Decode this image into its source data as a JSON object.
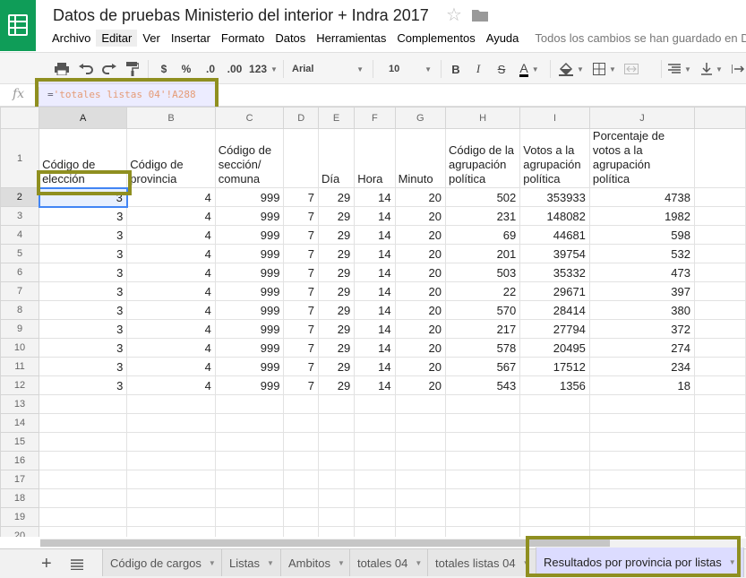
{
  "app": {
    "title": "Datos de pruebas Ministerio del interior + Indra 2017",
    "logo_icon": "sheets-logo-icon",
    "brand_color": "#0f9d58",
    "highlight_color": "#8f8f20"
  },
  "menu": {
    "items": [
      "Archivo",
      "Editar",
      "Ver",
      "Insertar",
      "Formato",
      "Datos",
      "Herramientas",
      "Complementos",
      "Ayuda"
    ],
    "active": "Editar",
    "save_status": "Todos los cambios se han guardado en Drive"
  },
  "toolbar": {
    "currency": "$",
    "percent": "%",
    "decrease_decimals": ".0",
    "increase_decimals": ".00",
    "more_formats": "123",
    "font_family": "Arial",
    "font_size": "10",
    "bold": "B",
    "italic": "I",
    "strikethrough": "S",
    "text_color": "A",
    "icons": [
      "print-icon",
      "undo-icon",
      "redo-icon",
      "paint-format-icon",
      "fill-color-icon",
      "borders-icon",
      "merge-icon",
      "align-icon",
      "valign-icon",
      "wrap-icon"
    ]
  },
  "formula_bar": {
    "fx_label": "fx",
    "formula_prefix": "=",
    "formula_ref": "'totales listas 04'!A288"
  },
  "sheet": {
    "columns": [
      "A",
      "B",
      "C",
      "D",
      "E",
      "F",
      "G",
      "H",
      "I",
      "J"
    ],
    "selected_column": "A",
    "selected_row": 2,
    "header_row": [
      "Código de elección",
      "Código de provincia",
      "Código de sección/ comuna",
      "",
      "Día",
      "Hora",
      "Minuto",
      "Código de la agrupación política",
      "Votos a la agrupación política",
      "Porcentaje de votos a la agrupación política"
    ],
    "rows": [
      [
        "3",
        "4",
        "999",
        "7",
        "29",
        "14",
        "20",
        "502",
        "353933",
        "4738"
      ],
      [
        "3",
        "4",
        "999",
        "7",
        "29",
        "14",
        "20",
        "231",
        "148082",
        "1982"
      ],
      [
        "3",
        "4",
        "999",
        "7",
        "29",
        "14",
        "20",
        "69",
        "44681",
        "598"
      ],
      [
        "3",
        "4",
        "999",
        "7",
        "29",
        "14",
        "20",
        "201",
        "39754",
        "532"
      ],
      [
        "3",
        "4",
        "999",
        "7",
        "29",
        "14",
        "20",
        "503",
        "35332",
        "473"
      ],
      [
        "3",
        "4",
        "999",
        "7",
        "29",
        "14",
        "20",
        "22",
        "29671",
        "397"
      ],
      [
        "3",
        "4",
        "999",
        "7",
        "29",
        "14",
        "20",
        "570",
        "28414",
        "380"
      ],
      [
        "3",
        "4",
        "999",
        "7",
        "29",
        "14",
        "20",
        "217",
        "27794",
        "372"
      ],
      [
        "3",
        "4",
        "999",
        "7",
        "29",
        "14",
        "20",
        "578",
        "20495",
        "274"
      ],
      [
        "3",
        "4",
        "999",
        "7",
        "29",
        "14",
        "20",
        "567",
        "17512",
        "234"
      ],
      [
        "3",
        "4",
        "999",
        "7",
        "29",
        "14",
        "20",
        "543",
        "1356",
        "18"
      ]
    ],
    "empty_rows": [
      13,
      14,
      15,
      16,
      17,
      18,
      19,
      20
    ]
  },
  "sheet_tabs": {
    "tabs": [
      "Código de cargos",
      "Listas",
      "Ambitos",
      "totales 04",
      "totales listas 04",
      "Resultados por provincia por listas"
    ],
    "active": "Resultados por provincia por listas",
    "add_label": "+"
  }
}
